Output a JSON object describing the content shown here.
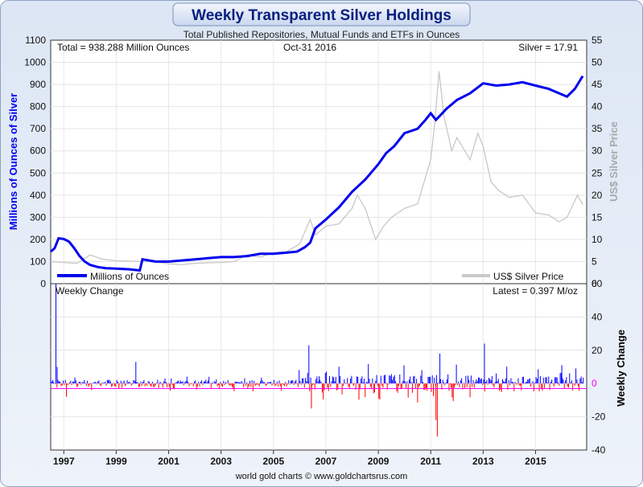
{
  "chart_data": [
    {
      "type": "line",
      "title": "Weekly Transparent Silver Holdings",
      "subtitle": "Total Published Repositories, Mutual Funds and ETFs in Ounces",
      "annotations": {
        "total": "Total = 938.288 Million Ounces",
        "date": "Oct-31  2016",
        "silver": "Silver = 17.91"
      },
      "ylabel_left": "Millions of Ounces of Silver",
      "ylabel_right": "US$ Silver Price",
      "ylim_left": [
        0,
        1100
      ],
      "ylim_right": [
        0,
        55
      ],
      "yticks_left": [
        "0",
        "100",
        "200",
        "300",
        "400",
        "500",
        "600",
        "700",
        "800",
        "900",
        "1000",
        "1100"
      ],
      "yticks_right": [
        "0",
        "5",
        "10",
        "15",
        "20",
        "25",
        "30",
        "35",
        "40",
        "45",
        "50",
        "55"
      ],
      "legend": {
        "holdings": "Millions of Ounces",
        "price": "US$ Silver Price"
      },
      "colors": {
        "holdings": "#0000ee",
        "price": "#c8c8c8"
      },
      "series": [
        {
          "name": "Millions of Ounces",
          "axis": "left",
          "x": [
            1996.5,
            1996.65,
            1996.8,
            1997.0,
            1997.2,
            1997.4,
            1997.6,
            1997.8,
            1998.0,
            1998.3,
            1998.6,
            1999.0,
            1999.5,
            1999.9,
            2000.0,
            2000.5,
            2001.0,
            2001.5,
            2002.0,
            2002.5,
            2003.0,
            2003.5,
            2004.0,
            2004.5,
            2005.0,
            2005.5,
            2005.9,
            2006.2,
            2006.4,
            2006.6,
            2007.0,
            2007.5,
            2008.0,
            2008.5,
            2009.0,
            2009.3,
            2009.6,
            2010.0,
            2010.5,
            2010.8,
            2011.0,
            2011.2,
            2011.4,
            2011.6,
            2012.0,
            2012.5,
            2013.0,
            2013.5,
            2014.0,
            2014.5,
            2015.0,
            2015.5,
            2016.0,
            2016.2,
            2016.5,
            2016.8
          ],
          "values": [
            145,
            160,
            205,
            202,
            190,
            160,
            125,
            100,
            85,
            75,
            70,
            68,
            65,
            60,
            110,
            100,
            100,
            105,
            110,
            115,
            120,
            120,
            125,
            135,
            135,
            140,
            145,
            165,
            185,
            250,
            290,
            345,
            415,
            470,
            540,
            590,
            620,
            680,
            700,
            740,
            770,
            740,
            765,
            790,
            830,
            860,
            905,
            895,
            900,
            910,
            895,
            880,
            855,
            845,
            880,
            938
          ]
        },
        {
          "name": "US$ Silver Price",
          "axis": "right",
          "x": [
            1996.5,
            1997.0,
            1997.5,
            1998.0,
            1998.5,
            1999.0,
            1999.5,
            2000.0,
            2000.5,
            2001.0,
            2001.5,
            2002.0,
            2002.5,
            2003.0,
            2003.5,
            2004.0,
            2004.5,
            2005.0,
            2005.5,
            2006.0,
            2006.4,
            2006.6,
            2007.0,
            2007.5,
            2008.0,
            2008.2,
            2008.5,
            2008.9,
            2009.2,
            2009.5,
            2010.0,
            2010.5,
            2010.8,
            2011.0,
            2011.15,
            2011.32,
            2011.5,
            2011.8,
            2012.0,
            2012.5,
            2012.8,
            2013.0,
            2013.3,
            2013.6,
            2014.0,
            2014.5,
            2015.0,
            2015.5,
            2015.9,
            2016.2,
            2016.6,
            2016.8
          ],
          "values": [
            5.0,
            4.8,
            4.6,
            6.5,
            5.5,
            5.2,
            5.1,
            5.0,
            4.9,
            4.5,
            4.3,
            4.6,
            4.7,
            4.8,
            5.0,
            6.5,
            6.0,
            7.0,
            7.2,
            9.0,
            14.5,
            11.0,
            13.0,
            13.5,
            17.0,
            20.0,
            17.0,
            10.0,
            13.0,
            15.0,
            17.0,
            18.0,
            24.0,
            28.0,
            36.0,
            48.0,
            38.0,
            30.0,
            33.0,
            28.0,
            34.0,
            31.0,
            23.0,
            21.0,
            19.5,
            20.0,
            16.0,
            15.5,
            14.0,
            15.0,
            20.0,
            17.9
          ]
        }
      ]
    },
    {
      "type": "bar",
      "title": "Weekly Change",
      "annotation": "Latest = 0.397 M/oz",
      "ylabel": "Weekly Change",
      "ylim": [
        -40,
        60
      ],
      "yticks": [
        "-40",
        "-20",
        "0",
        "20",
        "40",
        "60"
      ],
      "colors": {
        "positive": "#0000ff",
        "negative": "#ff0000"
      },
      "xticks": [
        "1997",
        "1999",
        "2001",
        "2003",
        "2005",
        "2007",
        "2009",
        "2011",
        "2013",
        "2015"
      ],
      "footer": "world gold charts © www.goldchartsrus.com",
      "spikes": [
        {
          "x": 1996.7,
          "value": 60
        },
        {
          "x": 1996.75,
          "value": 10
        },
        {
          "x": 1997.1,
          "value": -8
        },
        {
          "x": 1999.75,
          "value": 13
        },
        {
          "x": 2006.35,
          "value": 23
        },
        {
          "x": 2006.45,
          "value": -15
        },
        {
          "x": 2011.25,
          "value": -32
        },
        {
          "x": 2011.2,
          "value": -22
        },
        {
          "x": 2011.35,
          "value": 18
        },
        {
          "x": 2013.05,
          "value": 24
        },
        {
          "x": 2016.0,
          "value": 11
        }
      ]
    }
  ]
}
